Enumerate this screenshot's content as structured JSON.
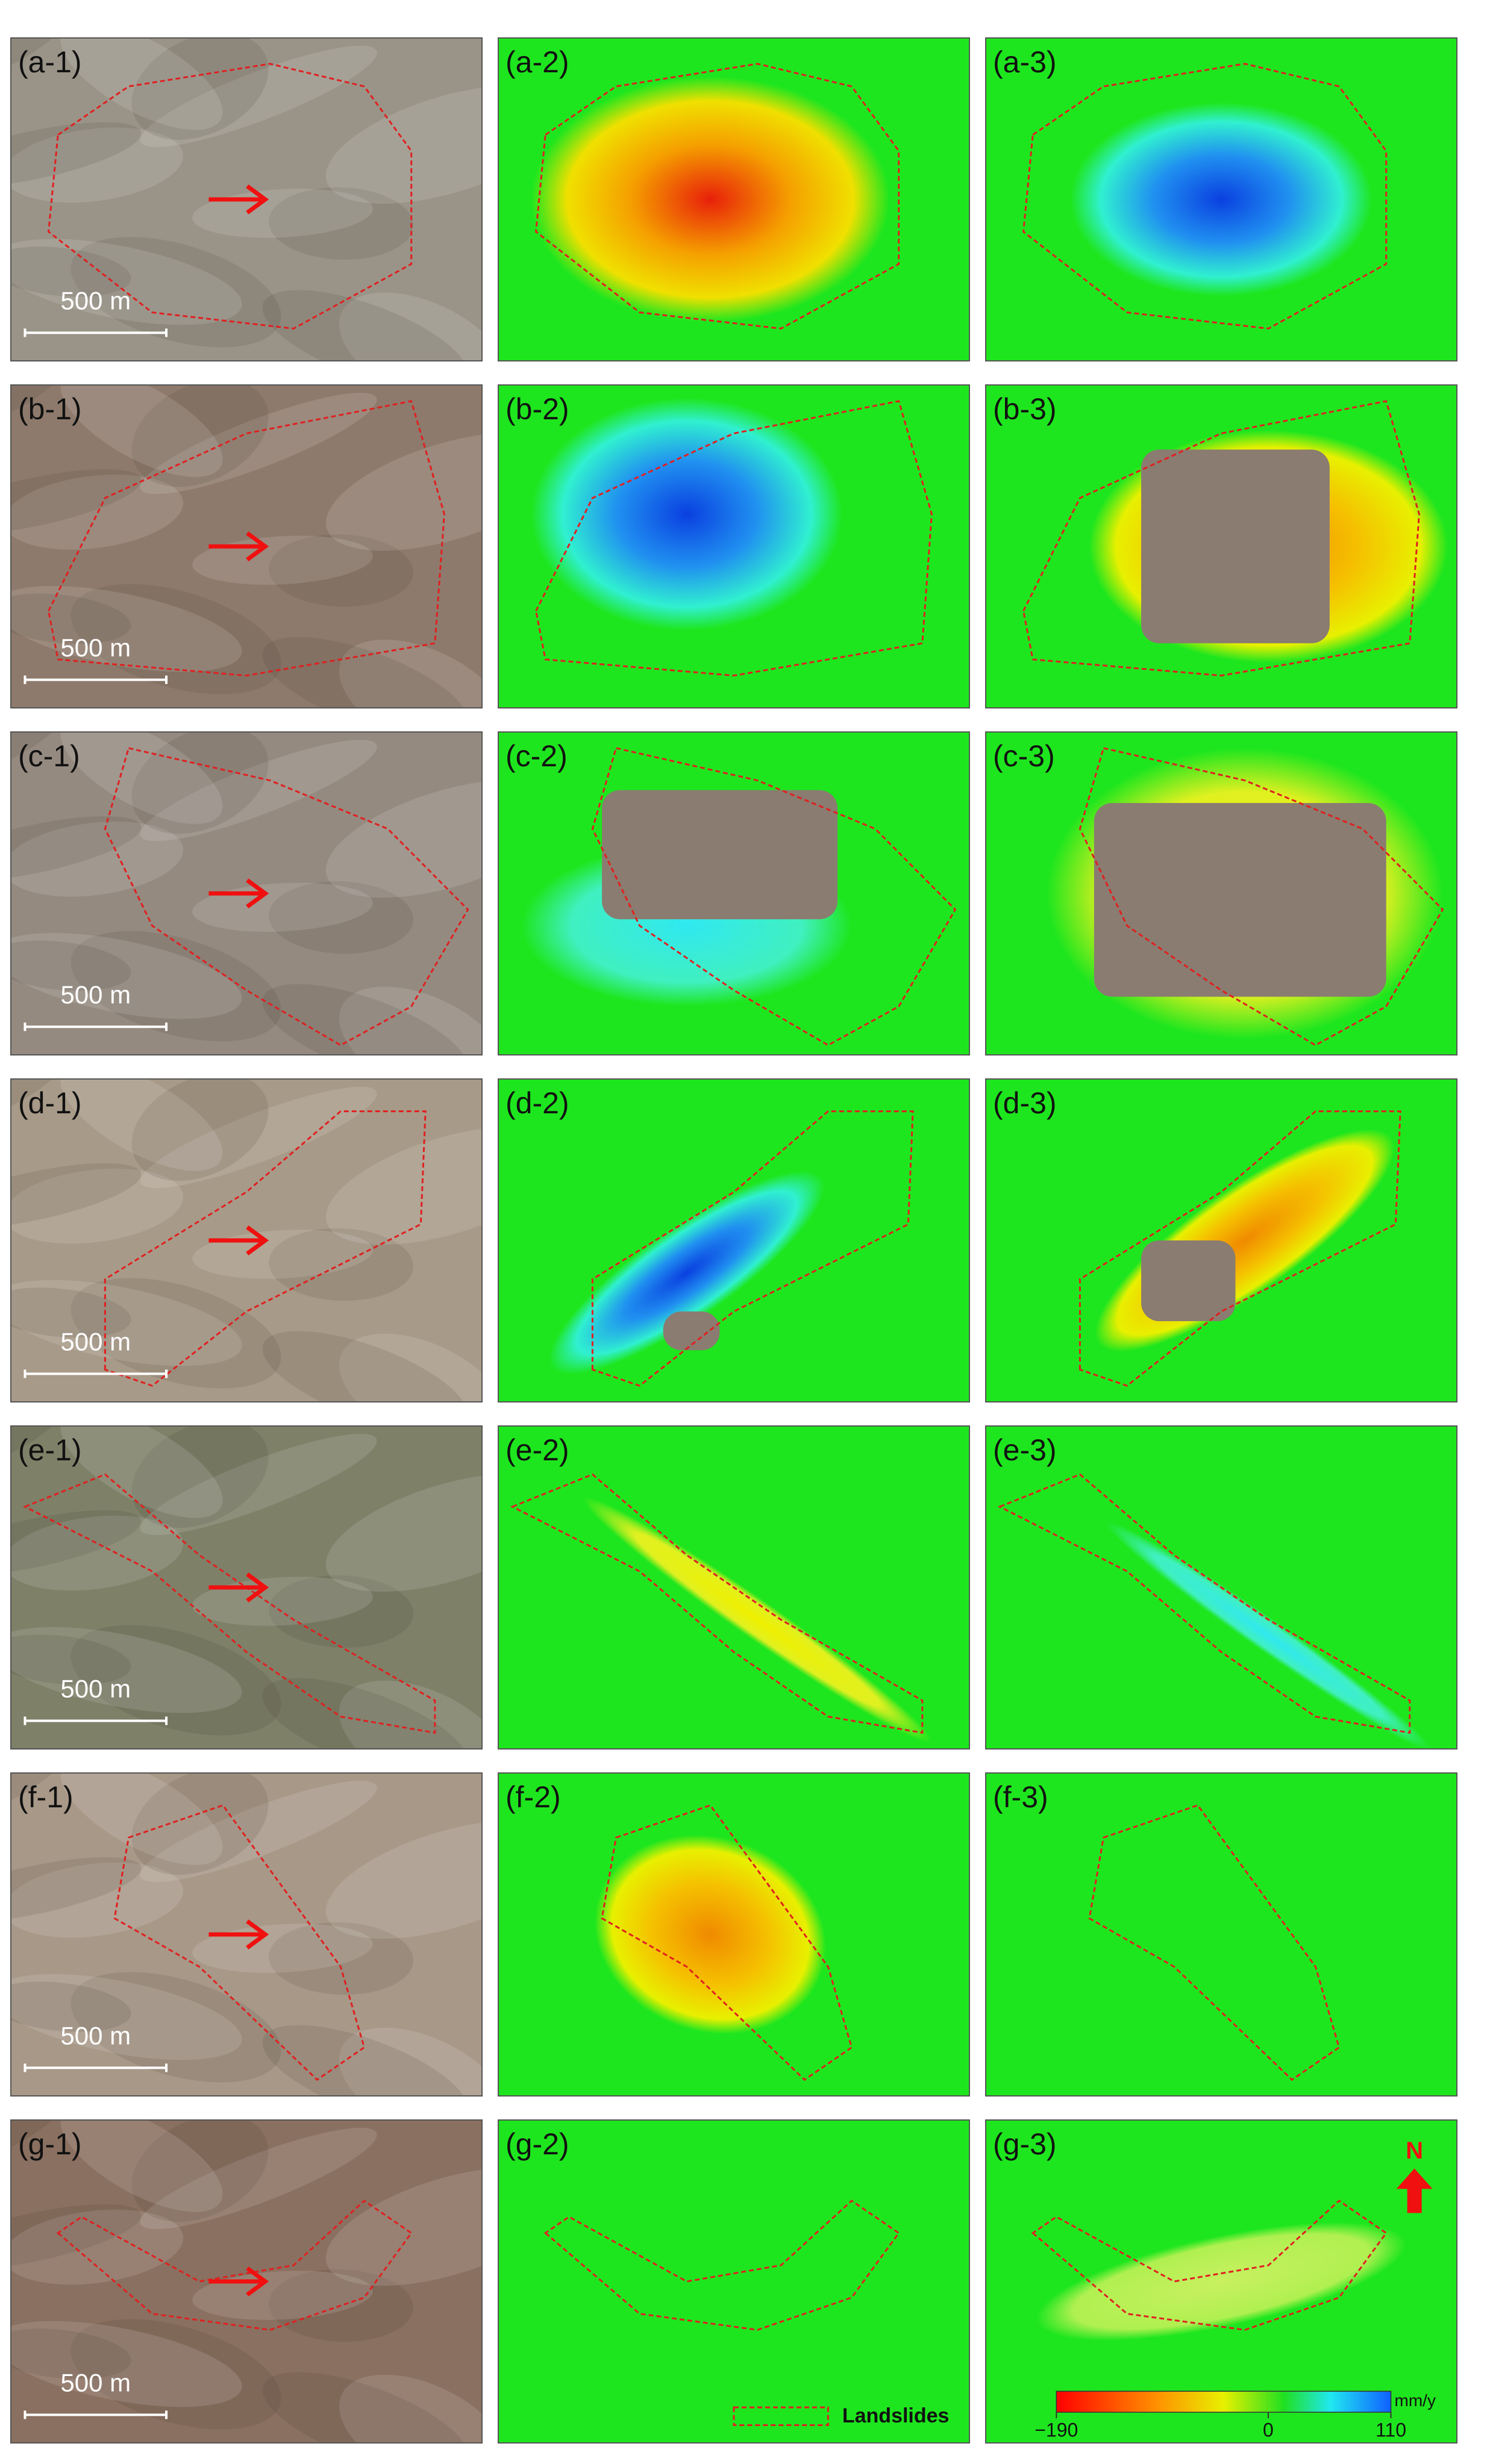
{
  "panels": [
    {
      "labels": [
        "(a-1)",
        "(a-2)",
        "(a-3)"
      ],
      "scale_bar": "500 m"
    },
    {
      "labels": [
        "(b-1)",
        "(b-2)",
        "(b-3)"
      ],
      "scale_bar": "500 m"
    },
    {
      "labels": [
        "(c-1)",
        "(c-2)",
        "(c-3)"
      ],
      "scale_bar": "500 m"
    },
    {
      "labels": [
        "(d-1)",
        "(d-2)",
        "(d-3)"
      ],
      "scale_bar": "500 m"
    },
    {
      "labels": [
        "(e-1)",
        "(e-2)",
        "(e-3)"
      ],
      "scale_bar": "500 m"
    },
    {
      "labels": [
        "(f-1)",
        "(f-2)",
        "(f-3)"
      ],
      "scale_bar": "500 m"
    },
    {
      "labels": [
        "(g-1)",
        "(g-2)",
        "(g-3)"
      ],
      "scale_bar": "500 m"
    }
  ],
  "legend": {
    "label": "Landslides"
  },
  "colorbar": {
    "unit": "mm/y",
    "lim": [
      -190,
      110
    ],
    "ticks": [
      {
        "value": -190,
        "label": "−190"
      },
      0,
      110
    ]
  },
  "north": "N"
}
